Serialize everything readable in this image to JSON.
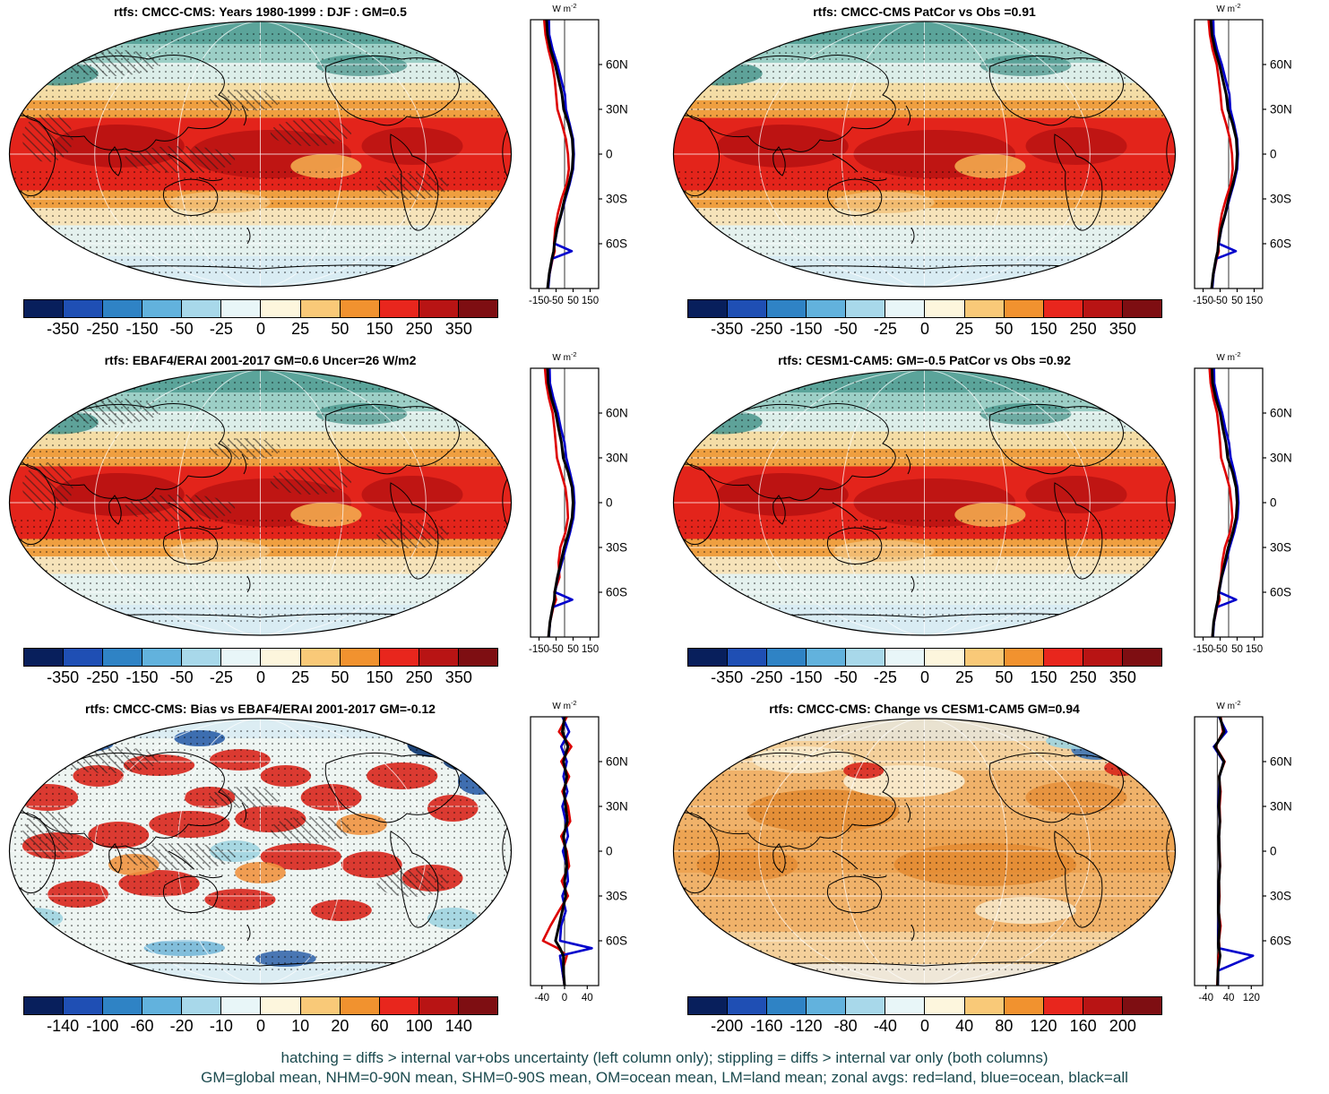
{
  "figure": {
    "caption_line1": "hatching = diffs > internal var+obs uncertainty (left column only); stippling = diffs > internal var only (both columns)",
    "caption_line2": "GM=global mean, NHM=0-90N mean, SHM=0-90S mean, OM=ocean mean, LM=land mean; zonal avgs: red=land, blue=ocean, black=all"
  },
  "legend_colors": {
    "land": "#dd0000",
    "ocean": "#0000cc",
    "all": "#000000"
  },
  "colorbar_palette": [
    "#081f5c",
    "#1f4fb4",
    "#2f83c5",
    "#62b2dd",
    "#a8d8ea",
    "#e8f6f8",
    "#fdf6dd",
    "#f9c978",
    "#f1922f",
    "#e8261d",
    "#b81414",
    "#7e0e12"
  ],
  "zonal_unit": {
    "base": "W m",
    "sup": "-2"
  },
  "zonal_lats": [
    90,
    80,
    70,
    60,
    50,
    40,
    30,
    20,
    10,
    0,
    -10,
    -20,
    -30,
    -40,
    -50,
    -60,
    -65,
    -70,
    -80,
    -90
  ],
  "zonal_lat_labels": [
    {
      "lat": 60,
      "label": "60N"
    },
    {
      "lat": 30,
      "label": "30N"
    },
    {
      "lat": 0,
      "label": "0"
    },
    {
      "lat": -30,
      "label": "30S"
    },
    {
      "lat": -60,
      "label": "60S"
    }
  ],
  "hatch_patches": [
    [
      0.2,
      0.16,
      0.1,
      0.05
    ],
    [
      0.08,
      0.44,
      0.05,
      0.09
    ],
    [
      0.34,
      0.52,
      0.11,
      0.05
    ],
    [
      0.6,
      0.42,
      0.08,
      0.05
    ],
    [
      0.8,
      0.62,
      0.07,
      0.05
    ],
    [
      0.47,
      0.3,
      0.07,
      0.04
    ]
  ],
  "map_styles": {
    "A": {
      "bands": [
        [
          0,
          0.09,
          "#5ba49a"
        ],
        [
          0.09,
          0.16,
          "#9ccfc6"
        ],
        [
          0.16,
          0.235,
          "#dceee9"
        ],
        [
          0.235,
          0.3,
          "#f4dda6"
        ],
        [
          0.3,
          0.365,
          "#ef9f40"
        ],
        [
          0.365,
          0.635,
          "#e3241b"
        ],
        [
          0.635,
          0.7,
          "#ef9f40"
        ],
        [
          0.7,
          0.765,
          "#f6e3ba"
        ],
        [
          0.765,
          0.88,
          "#e4f1ee"
        ],
        [
          0.88,
          1,
          "#d9ecf3"
        ]
      ],
      "blobs": [
        [
          0.22,
          0.47,
          0.13,
          0.08,
          "#b51111",
          0.85
        ],
        [
          0.52,
          0.5,
          0.16,
          0.09,
          "#b51111",
          0.8
        ],
        [
          0.8,
          0.47,
          0.1,
          0.07,
          "#b51111",
          0.8
        ],
        [
          0.63,
          0.545,
          0.07,
          0.045,
          "#f2a94e",
          0.9
        ],
        [
          0.1,
          0.2,
          0.08,
          0.045,
          "#3e8e84",
          0.8
        ],
        [
          0.7,
          0.17,
          0.09,
          0.04,
          "#3e8e84",
          0.7
        ],
        [
          0.42,
          0.68,
          0.1,
          0.04,
          "#f2c27c",
          0.8
        ]
      ],
      "stipple": [
        [
          0.05,
          0.36
        ],
        [
          0.56,
          0.95
        ]
      ]
    },
    "bias": {
      "bands": [
        [
          0,
          1,
          "#eef5f2"
        ],
        [
          0,
          0.08,
          "#dcedf3"
        ],
        [
          0.92,
          1,
          "#dcedf3"
        ]
      ],
      "blobs": [
        [
          0.08,
          0.3,
          0.06,
          0.05,
          "#d8261c",
          0.9
        ],
        [
          0.18,
          0.22,
          0.05,
          0.04,
          "#d8261c",
          0.9
        ],
        [
          0.3,
          0.18,
          0.07,
          0.04,
          "#d8261c",
          0.9
        ],
        [
          0.46,
          0.16,
          0.06,
          0.04,
          "#d8261c",
          0.9
        ],
        [
          0.1,
          0.48,
          0.07,
          0.05,
          "#d8261c",
          0.9
        ],
        [
          0.22,
          0.44,
          0.06,
          0.05,
          "#d8261c",
          0.9
        ],
        [
          0.36,
          0.4,
          0.08,
          0.05,
          "#d8261c",
          0.9
        ],
        [
          0.52,
          0.38,
          0.07,
          0.05,
          "#d8261c",
          0.9
        ],
        [
          0.64,
          0.3,
          0.06,
          0.05,
          "#d8261c",
          0.9
        ],
        [
          0.78,
          0.22,
          0.07,
          0.05,
          "#d8261c",
          0.9
        ],
        [
          0.88,
          0.34,
          0.05,
          0.05,
          "#d8261c",
          0.9
        ],
        [
          0.58,
          0.52,
          0.08,
          0.05,
          "#d8261c",
          0.9
        ],
        [
          0.72,
          0.55,
          0.06,
          0.05,
          "#d8261c",
          0.9
        ],
        [
          0.84,
          0.6,
          0.06,
          0.05,
          "#d8261c",
          0.9
        ],
        [
          0.3,
          0.62,
          0.08,
          0.05,
          "#d8261c",
          0.9
        ],
        [
          0.14,
          0.66,
          0.06,
          0.05,
          "#d8261c",
          0.9
        ],
        [
          0.46,
          0.68,
          0.07,
          0.04,
          "#d8261c",
          0.9
        ],
        [
          0.66,
          0.72,
          0.06,
          0.04,
          "#d8261c",
          0.9
        ],
        [
          0.4,
          0.3,
          0.05,
          0.04,
          "#d8261c",
          0.9
        ],
        [
          0.55,
          0.22,
          0.05,
          0.04,
          "#d8261c",
          0.9
        ],
        [
          0.25,
          0.55,
          0.05,
          0.04,
          "#ef9440",
          0.9
        ],
        [
          0.7,
          0.4,
          0.05,
          0.04,
          "#ef9440",
          0.9
        ],
        [
          0.5,
          0.58,
          0.05,
          0.04,
          "#ef9440",
          0.9
        ],
        [
          0.16,
          0.1,
          0.05,
          0.03,
          "#2b5fa8",
          0.9
        ],
        [
          0.38,
          0.08,
          0.05,
          0.03,
          "#2b5fa8",
          0.9
        ],
        [
          0.84,
          0.1,
          0.05,
          0.05,
          "#123b73",
          0.95
        ],
        [
          0.9,
          0.16,
          0.04,
          0.04,
          "#123b73",
          0.9
        ],
        [
          0.93,
          0.24,
          0.04,
          0.05,
          "#2b5fa8",
          0.9
        ],
        [
          0.55,
          0.9,
          0.06,
          0.03,
          "#2b5fa8",
          0.85
        ],
        [
          0.45,
          0.5,
          0.05,
          0.04,
          "#9fd4e0",
          0.9
        ],
        [
          0.05,
          0.75,
          0.06,
          0.04,
          "#9fd4e0",
          0.9
        ],
        [
          0.88,
          0.75,
          0.05,
          0.04,
          "#9fd4e0",
          0.9
        ],
        [
          0.35,
          0.86,
          0.08,
          0.03,
          "#76b8d8",
          0.9
        ]
      ],
      "stipple": [
        [
          0.04,
          0.96
        ]
      ]
    },
    "change": {
      "bands": [
        [
          0,
          0.09,
          "#e9e2d0"
        ],
        [
          0.09,
          0.2,
          "#f4d09b"
        ],
        [
          0.2,
          0.42,
          "#f0b26a"
        ],
        [
          0.42,
          0.58,
          "#eda453"
        ],
        [
          0.58,
          0.8,
          "#f0b26a"
        ],
        [
          0.8,
          0.92,
          "#f4d09b"
        ],
        [
          0.92,
          1,
          "#efe7d8"
        ]
      ],
      "blobs": [
        [
          0.3,
          0.35,
          0.15,
          0.08,
          "#e2882f",
          0.85
        ],
        [
          0.62,
          0.55,
          0.18,
          0.08,
          "#e2882f",
          0.8
        ],
        [
          0.15,
          0.55,
          0.1,
          0.06,
          "#e2882f",
          0.7
        ],
        [
          0.8,
          0.3,
          0.1,
          0.06,
          "#e2882f",
          0.7
        ],
        [
          0.46,
          0.24,
          0.12,
          0.06,
          "#f8ecd2",
          0.9
        ],
        [
          0.7,
          0.72,
          0.1,
          0.05,
          "#f8ecd2",
          0.8
        ],
        [
          0.26,
          0.16,
          0.1,
          0.05,
          "#f8ecd2",
          0.8
        ],
        [
          0.07,
          0.09,
          0.05,
          0.035,
          "#3f74b5",
          0.9
        ],
        [
          0.84,
          0.12,
          0.05,
          0.04,
          "#3f74b5",
          0.9
        ],
        [
          0.38,
          0.2,
          0.04,
          0.03,
          "#d8261c",
          0.9
        ],
        [
          0.89,
          0.19,
          0.035,
          0.03,
          "#d8261c",
          0.9
        ],
        [
          0.8,
          0.09,
          0.06,
          0.03,
          "#9fd4e0",
          0.9
        ]
      ],
      "stipple": [
        [
          0.04,
          0.96
        ]
      ]
    }
  },
  "chart_data": [
    {
      "type": "heatmap",
      "title": "rtfs: CMCC-CMS: Years 1980-1999 : DJF : GM=0.5",
      "units": "W m-2",
      "map_style": "A",
      "hatch": true,
      "colorbar_ticks": [
        "-350",
        "-250",
        "-150",
        "-50",
        "-25",
        "0",
        "25",
        "50",
        "150",
        "250",
        "350"
      ],
      "zonal": {
        "x_range": [
          -200,
          200
        ],
        "x_ticks": [
          -150,
          -50,
          50,
          150
        ]
      },
      "zonal_series": {
        "land": [
          -120,
          -112,
          -95,
          -72,
          -58,
          -50,
          -42,
          -15,
          8,
          20,
          25,
          12,
          -18,
          -40,
          -55,
          -62,
          -58,
          -70,
          -88,
          -100
        ],
        "ocean": [
          -92,
          -90,
          -70,
          -42,
          -20,
          2,
          8,
          30,
          50,
          55,
          50,
          30,
          5,
          -18,
          -42,
          -58,
          42,
          -72,
          -88,
          -96
        ],
        "all": [
          -106,
          -100,
          -82,
          -55,
          -35,
          -15,
          -5,
          24,
          45,
          50,
          45,
          25,
          0,
          -20,
          -44,
          -60,
          -64,
          -74,
          -90,
          -100
        ]
      }
    },
    {
      "type": "heatmap",
      "title": "rtfs: CMCC-CMS PatCor vs Obs =0.91",
      "units": "W m-2",
      "map_style": "A",
      "hatch": false,
      "colorbar_ticks": [
        "-350",
        "-250",
        "-150",
        "-50",
        "-25",
        "0",
        "25",
        "50",
        "150",
        "250",
        "350"
      ],
      "zonal": {
        "x_range": [
          -200,
          200
        ],
        "x_ticks": [
          -150,
          -50,
          50,
          150
        ]
      },
      "zonal_series": {
        "land": [
          -118,
          -110,
          -94,
          -70,
          -58,
          -48,
          -40,
          -14,
          8,
          20,
          24,
          12,
          -16,
          -40,
          -54,
          -62,
          -58,
          -70,
          -88,
          -100
        ],
        "ocean": [
          -90,
          -88,
          -68,
          -40,
          -18,
          5,
          10,
          32,
          50,
          55,
          50,
          30,
          5,
          -18,
          -42,
          -58,
          42,
          -72,
          -88,
          -96
        ],
        "all": [
          -104,
          -98,
          -80,
          -54,
          -34,
          -14,
          -4,
          24,
          45,
          50,
          45,
          25,
          0,
          -20,
          -44,
          -60,
          -64,
          -74,
          -90,
          -100
        ]
      }
    },
    {
      "type": "heatmap",
      "title": "rtfs: EBAF4/ERAI 2001-2017 GM=0.6 Uncer=26 W/m2",
      "units": "W m-2",
      "map_style": "A",
      "hatch": true,
      "colorbar_ticks": [
        "-350",
        "-250",
        "-150",
        "-50",
        "-25",
        "0",
        "25",
        "50",
        "150",
        "250",
        "350"
      ],
      "zonal": {
        "x_range": [
          -200,
          200
        ],
        "x_ticks": [
          -150,
          -50,
          50,
          150
        ]
      },
      "zonal_series": {
        "land": [
          -115,
          -108,
          -92,
          -70,
          -60,
          -52,
          -45,
          -20,
          5,
          15,
          20,
          5,
          -25,
          -35,
          -30,
          -60,
          -50,
          -66,
          -85,
          -95
        ],
        "ocean": [
          -88,
          -86,
          -66,
          -40,
          -22,
          0,
          10,
          32,
          52,
          58,
          52,
          32,
          8,
          -15,
          -40,
          -55,
          45,
          -70,
          -85,
          -92
        ],
        "all": [
          -100,
          -96,
          -78,
          -52,
          -36,
          -18,
          -8,
          22,
          44,
          50,
          44,
          24,
          -2,
          -22,
          -42,
          -58,
          -60,
          -70,
          -86,
          -94
        ]
      }
    },
    {
      "type": "heatmap",
      "title": "rtfs: CESM1-CAM5: GM=-0.5 PatCor vs Obs =0.92",
      "units": "W m-2",
      "map_style": "A",
      "hatch": false,
      "colorbar_ticks": [
        "-350",
        "-250",
        "-150",
        "-50",
        "-25",
        "0",
        "25",
        "50",
        "150",
        "250",
        "350"
      ],
      "zonal": {
        "x_range": [
          -200,
          200
        ],
        "x_ticks": [
          -150,
          -50,
          50,
          150
        ]
      },
      "zonal_series": {
        "land": [
          -112,
          -106,
          -90,
          -68,
          -58,
          -50,
          -44,
          -18,
          6,
          16,
          22,
          8,
          -22,
          -38,
          -45,
          -60,
          -52,
          -68,
          -86,
          -96
        ],
        "ocean": [
          -86,
          -84,
          -64,
          -38,
          -20,
          2,
          12,
          34,
          52,
          58,
          52,
          32,
          6,
          -16,
          -40,
          -56,
          44,
          -70,
          -86,
          -92
        ],
        "all": [
          -98,
          -94,
          -76,
          -50,
          -34,
          -16,
          -6,
          24,
          44,
          50,
          44,
          24,
          -2,
          -22,
          -42,
          -58,
          -62,
          -72,
          -88,
          -95
        ]
      }
    },
    {
      "type": "heatmap",
      "title": "rtfs: CMCC-CMS: Bias vs EBAF4/ERAI 2001-2017 GM=-0.12",
      "units": "W m-2",
      "map_style": "bias",
      "hatch": true,
      "colorbar_ticks": [
        "-140",
        "-100",
        "-60",
        "-20",
        "-10",
        "0",
        "10",
        "20",
        "60",
        "100",
        "140"
      ],
      "zonal": {
        "x_range": [
          -60,
          60
        ],
        "x_ticks": [
          -40,
          0,
          40
        ]
      },
      "zonal_series": {
        "land": [
          4,
          -10,
          12,
          -6,
          8,
          -4,
          6,
          10,
          -6,
          4,
          8,
          -5,
          6,
          -10,
          -25,
          -38,
          -12,
          4,
          -4,
          0
        ],
        "ocean": [
          -4,
          8,
          -6,
          4,
          -2,
          5,
          -4,
          2,
          6,
          -3,
          4,
          6,
          -4,
          2,
          -6,
          -8,
          48,
          -8,
          -4,
          0
        ],
        "all": [
          0,
          -4,
          6,
          -2,
          4,
          -1,
          2,
          5,
          -2,
          2,
          4,
          0,
          2,
          -4,
          -10,
          -16,
          -8,
          -2,
          -2,
          0
        ]
      }
    },
    {
      "type": "heatmap",
      "title": "rtfs: CMCC-CMS: Change vs CESM1-CAM5 GM=0.94",
      "units": "W m-2",
      "map_style": "change",
      "hatch": false,
      "colorbar_ticks": [
        "-200",
        "-160",
        "-120",
        "-80",
        "-40",
        "0",
        "40",
        "80",
        "120",
        "160",
        "200"
      ],
      "zonal": {
        "x_range": [
          -80,
          160
        ],
        "x_ticks": [
          -40,
          40,
          120
        ]
      },
      "zonal_series": {
        "land": [
          12,
          20,
          -6,
          26,
          6,
          12,
          8,
          10,
          6,
          8,
          10,
          6,
          8,
          5,
          12,
          6,
          8,
          5,
          2,
          0
        ],
        "ocean": [
          6,
          32,
          -12,
          22,
          8,
          6,
          5,
          8,
          6,
          7,
          8,
          6,
          5,
          6,
          5,
          4,
          6,
          126,
          3,
          2
        ],
        "all": [
          9,
          24,
          -8,
          24,
          7,
          9,
          6,
          9,
          6,
          7,
          9,
          6,
          6,
          5,
          8,
          5,
          6,
          10,
          2,
          1
        ]
      }
    }
  ]
}
